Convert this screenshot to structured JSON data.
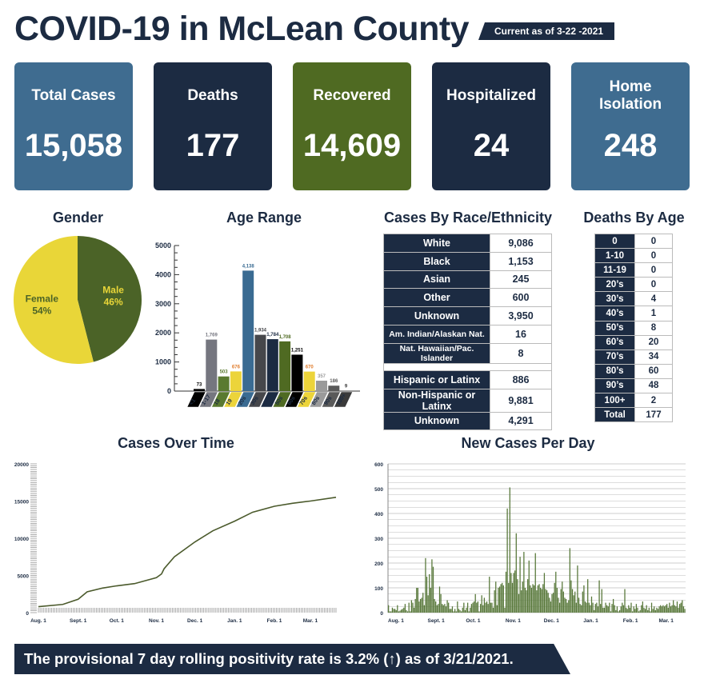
{
  "header": {
    "title": "COVID-19 in McLean County",
    "as_of": "Current as of 3-22 -2021"
  },
  "cards": [
    {
      "label": "Total Cases",
      "value": "15,058",
      "color": "#3f6c90"
    },
    {
      "label": "Deaths",
      "value": "177",
      "color": "#1c2b42"
    },
    {
      "label": "Recovered",
      "value": "14,609",
      "color": "#4f6a22"
    },
    {
      "label": "Hospitalized",
      "value": "24",
      "color": "#1c2b42"
    },
    {
      "label": "Home Isolation",
      "value": "248",
      "color": "#3f6c90"
    }
  ],
  "sections": {
    "gender": "Gender",
    "age": "Age Range",
    "race": "Cases By Race/Ethnicity",
    "deaths_age": "Deaths By Age",
    "over_time": "Cases Over Time",
    "per_day": "New Cases Per Day"
  },
  "race_table": {
    "rows": [
      [
        "White",
        "9,086"
      ],
      [
        "Black",
        "1,153"
      ],
      [
        "Asian",
        "245"
      ],
      [
        "Other",
        "600"
      ],
      [
        "Unknown",
        "3,950"
      ],
      [
        "Am. Indian/Alaskan Nat.",
        "16"
      ],
      [
        "Nat. Hawaiian/Pac. Islander",
        "8"
      ]
    ],
    "ethnicity_rows": [
      [
        "Hispanic or Latinx",
        "886"
      ],
      [
        "Non-Hispanic or Latinx",
        "9,881"
      ],
      [
        "Unknown",
        "4,291"
      ]
    ]
  },
  "deaths_table": [
    [
      "0",
      "0"
    ],
    [
      "1-10",
      "0"
    ],
    [
      "11-19",
      "0"
    ],
    [
      "20’s",
      "0"
    ],
    [
      "30’s",
      "4"
    ],
    [
      "40’s",
      "1"
    ],
    [
      "50’s",
      "8"
    ],
    [
      "60’s",
      "20"
    ],
    [
      "70’s",
      "34"
    ],
    [
      "80’s",
      "60"
    ],
    [
      "90’s",
      "48"
    ],
    [
      "100+",
      "2"
    ],
    [
      "Total",
      "177"
    ]
  ],
  "footer": "The provisional 7 day rolling positivity rate is 3.2% (↑) as of 3/21/2021.",
  "chart_data": [
    {
      "type": "pie",
      "title": "Gender",
      "slices": [
        {
          "label": "Male",
          "percent_label": "46%",
          "value": 46,
          "color": "#4b6327"
        },
        {
          "label": "Female",
          "percent_label": "54%",
          "value": 54,
          "color": "#e9d638"
        }
      ]
    },
    {
      "type": "bar",
      "title": "Age Range",
      "categories": [
        "<1",
        "1-17",
        "18",
        "19",
        "20s",
        "30s",
        "40s",
        "50s",
        "60s",
        "70s",
        "80s",
        "90s",
        "100+"
      ],
      "values": [
        73,
        1769,
        503,
        676,
        4138,
        1934,
        1784,
        1708,
        1251,
        670,
        357,
        186,
        9
      ],
      "value_labels": [
        "73",
        "1,769",
        "503",
        "676",
        "4,138",
        "1,934",
        "1,784",
        "1,708",
        "1,251",
        "670",
        "357",
        "186",
        "9"
      ],
      "colors": [
        "#000000",
        "#75767f",
        "#5a7a30",
        "#ecd43a",
        "#3a6b92",
        "#46474b",
        "#1c2b42",
        "#4f6a22",
        "#000000",
        "#ecd43a",
        "#9a9a9a",
        "#5a5a5a",
        "#3a3a3a"
      ],
      "label_colors": [
        "#000000",
        "#75767f",
        "#5a7a30",
        "#e07b2a",
        "#3a6b92",
        "#46474b",
        "#1c2b42",
        "#4f6a22",
        "#000000",
        "#e07b2a",
        "#9a9a9a",
        "#5a5a5a",
        "#3a3a3a"
      ],
      "ylim": [
        0,
        5000
      ],
      "yticks": [
        0,
        1000,
        2000,
        3000,
        4000,
        5000
      ]
    },
    {
      "type": "line",
      "title": "Cases Over Time",
      "color": "#4b5a2c",
      "ylim": [
        0,
        20000
      ],
      "yticks": [
        0,
        5000,
        10000,
        15000,
        20000
      ],
      "xticks": [
        [
          "2020-08-01",
          "Aug. 1"
        ],
        [
          "2020-09-01",
          "Sept. 1"
        ],
        [
          "2020-10-01",
          "Oct. 1"
        ],
        [
          "2020-11-01",
          "Nov. 1"
        ],
        [
          "2020-12-01",
          "Dec. 1"
        ],
        [
          "2021-01-01",
          "Jan. 1"
        ],
        [
          "2021-02-01",
          "Feb. 1"
        ],
        [
          "2021-03-01",
          "Mar. 1"
        ]
      ],
      "xlim": [
        "2020-08-01",
        "2021-03-21"
      ],
      "points": [
        [
          "2020-08-01",
          800
        ],
        [
          "2020-08-20",
          1100
        ],
        [
          "2020-09-01",
          1800
        ],
        [
          "2020-09-08",
          2800
        ],
        [
          "2020-09-20",
          3300
        ],
        [
          "2020-10-01",
          3600
        ],
        [
          "2020-10-15",
          3900
        ],
        [
          "2020-11-01",
          4700
        ],
        [
          "2020-11-05",
          5200
        ],
        [
          "2020-11-07",
          5900
        ],
        [
          "2020-11-15",
          7500
        ],
        [
          "2020-12-01",
          9500
        ],
        [
          "2020-12-15",
          11000
        ],
        [
          "2021-01-01",
          12300
        ],
        [
          "2021-01-15",
          13500
        ],
        [
          "2021-02-01",
          14300
        ],
        [
          "2021-02-15",
          14700
        ],
        [
          "2021-03-01",
          15000
        ],
        [
          "2021-03-21",
          15500
        ]
      ]
    },
    {
      "type": "bar",
      "title": "New Cases Per Day",
      "color": "#58783a",
      "ylim": [
        0,
        600
      ],
      "yticks": [
        0,
        100,
        200,
        300,
        400,
        500,
        600
      ],
      "start": "2020-08-01",
      "xticks": [
        [
          "2020-08-01",
          "Aug. 1"
        ],
        [
          "2020-09-01",
          "Sept. 1"
        ],
        [
          "2020-10-01",
          "Oct. 1"
        ],
        [
          "2020-11-01",
          "Nov. 1"
        ],
        [
          "2020-12-01",
          "Dec. 1"
        ],
        [
          "2021-01-01",
          "Jan. 1"
        ],
        [
          "2021-02-01",
          "Feb. 1"
        ],
        [
          "2021-03-01",
          "Mar. 1"
        ]
      ],
      "values": [
        30,
        5,
        5,
        20,
        15,
        15,
        10,
        30,
        5,
        8,
        12,
        15,
        20,
        35,
        10,
        5,
        40,
        5,
        50,
        40,
        20,
        55,
        100,
        100,
        45,
        55,
        60,
        80,
        30,
        220,
        145,
        70,
        155,
        100,
        215,
        185,
        55,
        45,
        30,
        35,
        105,
        75,
        35,
        30,
        35,
        25,
        50,
        40,
        15,
        15,
        25,
        5,
        15,
        5,
        45,
        15,
        10,
        5,
        20,
        40,
        10,
        20,
        40,
        5,
        20,
        35,
        40,
        45,
        75,
        40,
        45,
        5,
        35,
        70,
        30,
        60,
        40,
        45,
        35,
        145,
        40,
        40,
        20,
        90,
        125,
        30,
        100,
        105,
        115,
        120,
        110,
        20,
        165,
        420,
        120,
        505,
        160,
        120,
        160,
        170,
        320,
        135,
        75,
        225,
        90,
        125,
        245,
        100,
        90,
        135,
        210,
        110,
        100,
        115,
        110,
        240,
        90,
        110,
        115,
        100,
        95,
        115,
        160,
        95,
        90,
        80,
        60,
        45,
        75,
        80,
        120,
        165,
        100,
        60,
        40,
        95,
        125,
        85,
        60,
        55,
        40,
        50,
        260,
        130,
        95,
        70,
        85,
        40,
        190,
        60,
        35,
        30,
        85,
        110,
        45,
        40,
        135,
        40,
        30,
        65,
        40,
        10,
        35,
        40,
        25,
        130,
        35,
        95,
        20,
        20,
        40,
        30,
        25,
        40,
        5,
        35,
        55,
        30,
        10,
        25,
        5,
        10,
        25,
        40,
        30,
        95,
        20,
        15,
        30,
        20,
        40,
        5,
        25,
        15,
        35,
        20,
        5,
        10,
        30,
        45,
        20,
        15,
        30,
        10,
        20,
        5,
        40,
        15,
        25,
        10,
        20,
        15,
        25,
        30,
        25,
        30,
        25,
        30,
        35,
        20,
        40,
        25,
        30,
        50,
        30,
        25,
        45,
        20,
        35,
        40,
        50,
        25,
        15
      ]
    }
  ]
}
